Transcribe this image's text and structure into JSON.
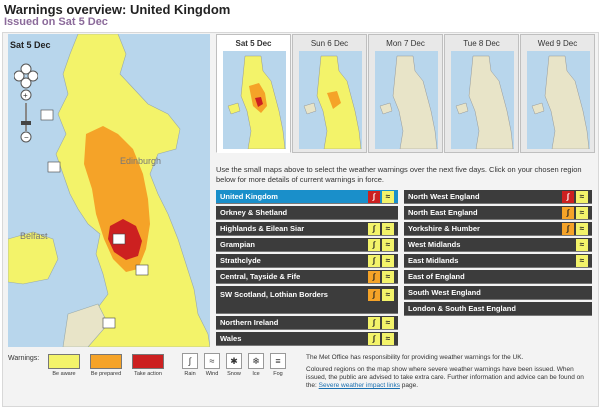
{
  "header": {
    "title": "Warnings overview: United Kingdom",
    "subtitle": "Issued on Sat 5 Dec"
  },
  "main_map": {
    "date": "Sat 5 Dec",
    "labels": [
      "Edinburgh",
      "Belfast"
    ],
    "colors": {
      "yellow": "#f3f36a",
      "orange": "#f5a328",
      "red": "#cc2020"
    }
  },
  "tabs": [
    {
      "label": "Sat 5 Dec",
      "active": true
    },
    {
      "label": "Sun 6 Dec",
      "active": false
    },
    {
      "label": "Mon 7 Dec",
      "active": false
    },
    {
      "label": "Tue 8 Dec",
      "active": false
    },
    {
      "label": "Wed 9 Dec",
      "active": false
    }
  ],
  "info_text": "Use the small maps above to select the weather warnings over the next five days. Click on your chosen region below for more details of current warnings in force.",
  "regions_left": [
    {
      "label": "United Kingdom",
      "selected": true,
      "icons": [
        "red-rain-icon",
        "yellow-wind-icon"
      ]
    },
    {
      "label": "Orkney & Shetland",
      "icons": []
    },
    {
      "label": "Highlands & Eilean Siar",
      "icons": [
        "yellow-rain-icon",
        "yellow-wind-icon"
      ]
    },
    {
      "label": "Grampian",
      "icons": [
        "yellow-rain-icon",
        "yellow-wind-icon"
      ]
    },
    {
      "label": "Strathclyde",
      "icons": [
        "yellow-rain-icon",
        "yellow-wind-icon"
      ]
    },
    {
      "label": "Central, Tayside & Fife",
      "icons": [
        "orange-rain-icon",
        "yellow-wind-icon"
      ]
    },
    {
      "label": "SW Scotland, Lothian Borders",
      "icons": [
        "orange-rain-icon",
        "yellow-wind-icon"
      ]
    },
    {
      "label": "Northern Ireland",
      "icons": [
        "yellow-rain-icon",
        "yellow-wind-icon"
      ]
    },
    {
      "label": "Wales",
      "icons": [
        "yellow-rain-icon",
        "yellow-wind-icon"
      ]
    }
  ],
  "regions_right": [
    {
      "label": "North West England",
      "icons": [
        "red-rain-icon",
        "yellow-wind-icon"
      ]
    },
    {
      "label": "North East England",
      "icons": [
        "orange-rain-icon",
        "yellow-wind-icon"
      ]
    },
    {
      "label": "Yorkshire & Humber",
      "icons": [
        "orange-rain-icon",
        "yellow-wind-icon"
      ]
    },
    {
      "label": "West Midlands",
      "icons": [
        "yellow-wind-icon"
      ]
    },
    {
      "label": "East Midlands",
      "icons": [
        "yellow-wind-icon"
      ]
    },
    {
      "label": "East of England",
      "icons": []
    },
    {
      "label": "South West England",
      "icons": []
    },
    {
      "label": "London & South East England",
      "icons": []
    }
  ],
  "legend": {
    "title": "Warnings:",
    "levels": [
      "Be aware",
      "Be prepared",
      "Take action"
    ],
    "types": [
      "Rain",
      "Wind",
      "Snow",
      "Ice",
      "Fog"
    ]
  },
  "note": {
    "p1": "The Met Office has responsibility for providing weather warnings for the UK.",
    "p2_a": "Coloured regions on the map show where severe weather warnings have been issued. When issued, the public are advised to take extra care. Further information and advice can be found on the:",
    "link": "Severe weather impact links",
    "p2_b": "page."
  }
}
